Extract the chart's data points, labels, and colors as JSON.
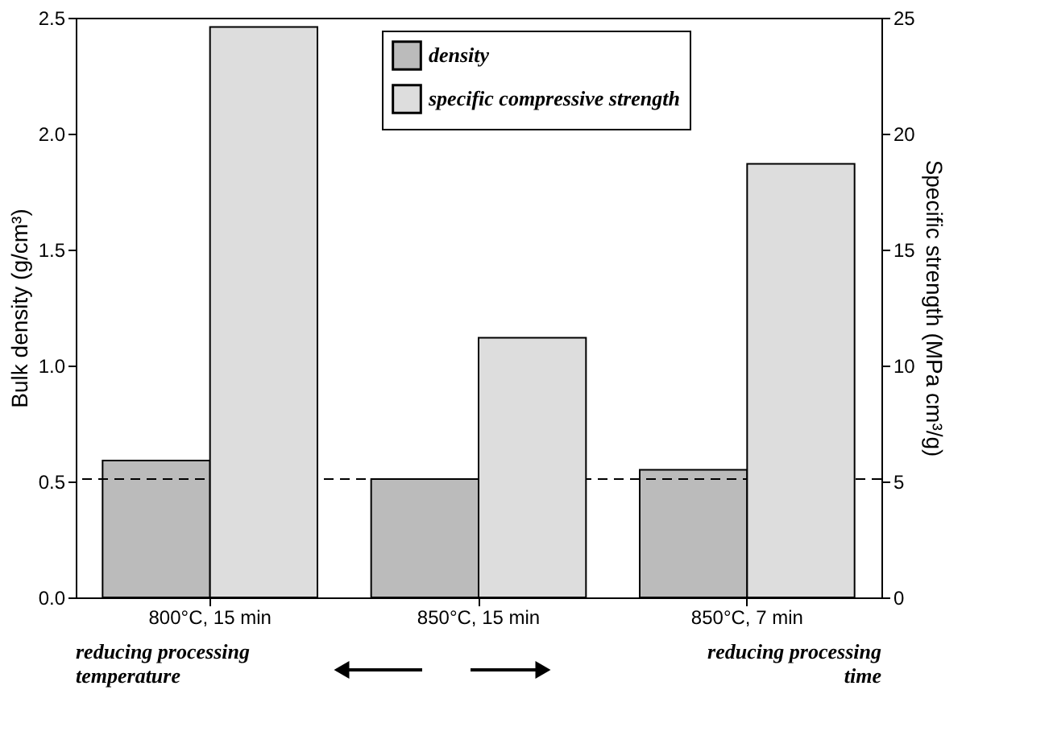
{
  "chart_data": {
    "type": "bar",
    "categories": [
      "800°C, 15 min",
      "850°C, 15 min",
      "850°C, 7 min"
    ],
    "series": [
      {
        "name": "density",
        "color": "#bbbbbb",
        "values": [
          0.59,
          0.51,
          0.55
        ]
      },
      {
        "name": "specific compressive strength",
        "color": "#dddddd",
        "values": [
          24.6,
          11.2,
          18.7
        ],
        "axis": "y2"
      }
    ],
    "ylabel": "Bulk density (g/cm³)",
    "y2label": "Specific strength (MPa cm³/g)",
    "ylim": [
      0,
      2.5
    ],
    "yticks": [
      {
        "value": 0,
        "label": "0.0"
      },
      0.5,
      {
        "value": 1,
        "label": "1.0"
      },
      1.5,
      {
        "value": 2,
        "label": "2.0"
      },
      2.5
    ],
    "y2lim": [
      0,
      25
    ],
    "y2ticks": [
      0,
      5,
      10,
      15,
      20,
      25
    ],
    "ref_lines": [
      {
        "axis": "y",
        "value": 0.51,
        "color": "#000000",
        "line_style": "dashed"
      }
    ],
    "annotations": [
      "reducing processing\ntemperature",
      "reducing processing\ntime"
    ],
    "legend": "top",
    "grid": false
  }
}
